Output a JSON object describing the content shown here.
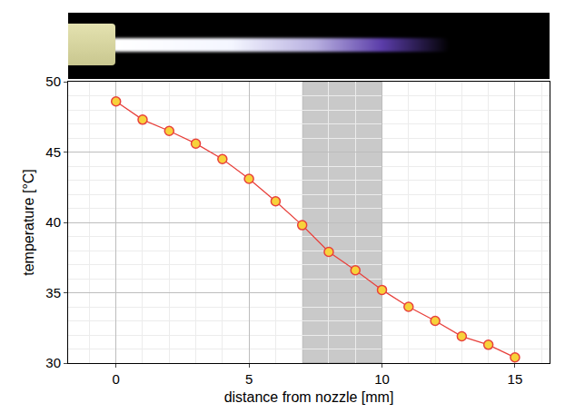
{
  "chart_data": {
    "type": "line",
    "xlabel": "distance from nozzle [mm]",
    "ylabel": "temperature [°C]",
    "x": [
      0,
      1,
      2,
      3,
      4,
      5,
      6,
      7,
      8,
      9,
      10,
      11,
      12,
      13,
      14,
      15
    ],
    "values": [
      48.6,
      47.3,
      46.5,
      45.6,
      44.5,
      43.1,
      41.5,
      39.8,
      37.9,
      36.6,
      35.2,
      34.0,
      33.0,
      31.9,
      31.3,
      30.4
    ],
    "color": "#e8413c",
    "marker": "circle",
    "xlim": [
      -1.8,
      16.3
    ],
    "xticks": [
      0,
      5,
      10,
      15
    ],
    "ylim": [
      30,
      50
    ],
    "yticks": [
      30,
      35,
      40,
      45,
      50
    ],
    "shaded_x_span": [
      7,
      10
    ],
    "grid": true
  }
}
